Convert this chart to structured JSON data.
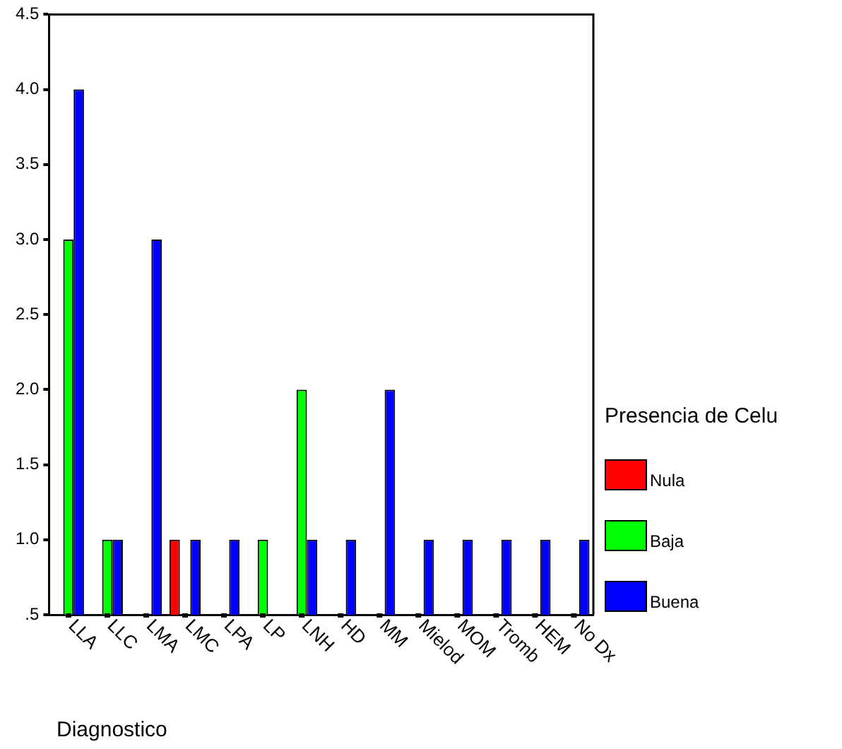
{
  "chart_data": {
    "type": "bar",
    "xlabel": "Diagnostico",
    "legend_title": "Presencia de Celu",
    "categories": [
      "LLA",
      "LLC",
      "LMA",
      "LMC",
      "LPA",
      "LP",
      "LNH",
      "HD",
      "MM",
      "Mielod",
      "MOM",
      "Tromb",
      "HEM",
      "No Dx"
    ],
    "series": [
      {
        "name": "Nula",
        "color": "#ff0000",
        "values": [
          null,
          null,
          null,
          1,
          null,
          null,
          null,
          null,
          null,
          null,
          null,
          null,
          null,
          null
        ]
      },
      {
        "name": "Baja",
        "color": "#00ff00",
        "values": [
          3,
          1,
          null,
          null,
          null,
          1,
          2,
          null,
          null,
          null,
          null,
          null,
          null,
          null
        ]
      },
      {
        "name": "Buena",
        "color": "#0000ff",
        "values": [
          4,
          1,
          3,
          1,
          1,
          null,
          1,
          1,
          2,
          1,
          1,
          1,
          1,
          1
        ]
      }
    ],
    "ylim": [
      0.5,
      4.5
    ],
    "yticks": [
      {
        "value": 0.5,
        "label": ".5"
      },
      {
        "value": 1,
        "label": "1.0"
      },
      {
        "value": 1.5,
        "label": "1.5"
      },
      {
        "value": 2,
        "label": "2.0"
      },
      {
        "value": 2.5,
        "label": "2.5"
      },
      {
        "value": 3,
        "label": "3.0"
      },
      {
        "value": 3.5,
        "label": "3.5"
      },
      {
        "value": 4,
        "label": "4.0"
      },
      {
        "value": 4.5,
        "label": "4.5"
      }
    ],
    "grid": false,
    "legend": "right"
  }
}
